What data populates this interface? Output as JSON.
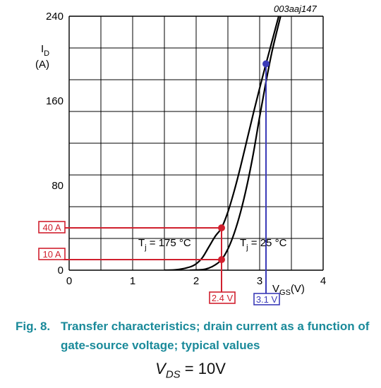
{
  "chart_data": {
    "type": "line",
    "figure_id": "003aaj147",
    "ylabel_symbol": "I",
    "ylabel_sub": "D",
    "ylabel_unit": "(A)",
    "xlabel_symbol": "V",
    "xlabel_sub": "GS",
    "xlabel_unit": "(V)",
    "xlim": [
      0,
      4
    ],
    "ylim": [
      0,
      240
    ],
    "x_ticks": [
      0,
      1,
      2,
      3,
      4
    ],
    "y_ticks": [
      0,
      80,
      160,
      240
    ],
    "grid": true,
    "series": [
      {
        "name": "Tj = 175 °C",
        "label_prefix": "T",
        "label_sub": "j",
        "label_suffix": " = 175 °C",
        "color": "#000000",
        "x": [
          1.5,
          1.7,
          1.9,
          2.0,
          2.1,
          2.2,
          2.3,
          2.4,
          2.5,
          2.6,
          2.7,
          2.8,
          2.9,
          3.0,
          3.1,
          3.3
        ],
        "y": [
          0,
          0.5,
          3,
          6,
          12,
          22,
          32,
          40,
          55,
          75,
          98,
          123,
          148,
          172,
          195,
          240
        ]
      },
      {
        "name": "Tj = 25 °C",
        "label_prefix": "T",
        "label_sub": "j",
        "label_suffix": " = 25 °C",
        "color": "#000000",
        "x": [
          1.9,
          2.1,
          2.2,
          2.3,
          2.4,
          2.5,
          2.6,
          2.7,
          2.8,
          2.9,
          3.0,
          3.1,
          3.2,
          3.33
        ],
        "y": [
          0,
          0.5,
          2,
          5,
          10,
          20,
          35,
          55,
          80,
          110,
          145,
          178,
          208,
          240
        ]
      }
    ],
    "annotations": [
      {
        "label": "40 A",
        "x": 2.4,
        "y": 40,
        "color": "#d0202e"
      },
      {
        "label": "10 A",
        "x": 2.4,
        "y": 10,
        "color": "#d0202e"
      },
      {
        "label": "2.4 V",
        "x": 2.4,
        "color": "#d0202e"
      },
      {
        "label": "3.1 V",
        "x": 3.1,
        "y": 195,
        "color": "#3b3bb8"
      }
    ]
  },
  "caption": {
    "number": "Fig. 8.",
    "text": "Transfer characteristics; drain current as a function of gate-source voltage; typical values"
  },
  "formula": {
    "symbol": "V",
    "sub": "DS",
    "rest": " = 10V"
  }
}
